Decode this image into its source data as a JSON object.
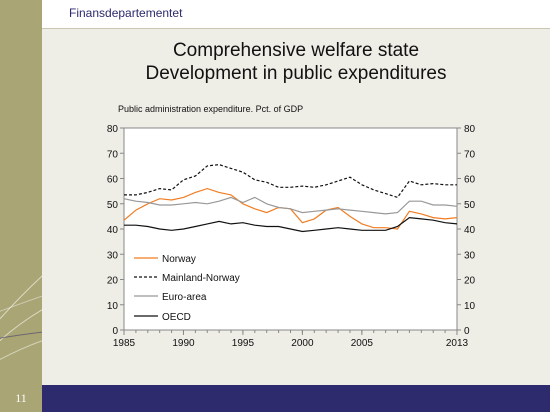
{
  "header": {
    "department": "Finansdepartementet"
  },
  "slide": {
    "title_line1": "Comprehensive welfare state",
    "title_line2": "Development in public expenditures",
    "page_number": "11"
  },
  "colors": {
    "olive": "#a9a574",
    "navy": "#2d2a6e"
  },
  "chart_data": {
    "type": "line",
    "subtitle": "Public administration expenditure. Pct. of GDP",
    "ylim": [
      0,
      80
    ],
    "yticks": [
      0,
      10,
      20,
      30,
      40,
      50,
      60,
      70,
      80
    ],
    "xlim": [
      1985,
      2013
    ],
    "xticks": [
      1985,
      1990,
      1995,
      2000,
      2005,
      2013
    ],
    "legend": "bottom-left",
    "x": [
      1985,
      1986,
      1987,
      1988,
      1989,
      1990,
      1991,
      1992,
      1993,
      1994,
      1995,
      1996,
      1997,
      1998,
      1999,
      2000,
      2001,
      2002,
      2003,
      2004,
      2005,
      2006,
      2007,
      2008,
      2009,
      2010,
      2011,
      2012,
      2013
    ],
    "series": [
      {
        "name": "Norway",
        "color": "#f07d23",
        "dash": "",
        "values": [
          43.5,
          47.5,
          50,
          52,
          51.5,
          52.5,
          54.5,
          56,
          54.5,
          53.5,
          50,
          48,
          46.5,
          48.5,
          48,
          42.5,
          44,
          47.5,
          48.5,
          45,
          42,
          40.5,
          40.5,
          40,
          47,
          46,
          44.5,
          44,
          44.5
        ]
      },
      {
        "name": "Mainland-Norway",
        "color": "#111111",
        "dash": "3,2",
        "values": [
          53.5,
          53.5,
          54.5,
          56,
          55.5,
          59.5,
          61,
          65,
          65.5,
          64,
          62.5,
          59.5,
          58.5,
          56.5,
          56.5,
          57,
          56.5,
          57.5,
          59,
          60.5,
          57.5,
          55.5,
          54,
          52.5,
          59,
          57.5,
          58,
          57.5,
          57.5
        ]
      },
      {
        "name": "Euro-area",
        "color": "#999999",
        "dash": "",
        "values": [
          52,
          51,
          50.5,
          49.5,
          49.5,
          50,
          50.5,
          50,
          51,
          52.5,
          50.5,
          52.5,
          50,
          48.5,
          48,
          46.5,
          47,
          47.5,
          48,
          47.5,
          47,
          46.5,
          46,
          46.5,
          51,
          51,
          49.5,
          49.5,
          49
        ]
      },
      {
        "name": "OECD",
        "color": "#111111",
        "dash": "",
        "values": [
          41.5,
          41.5,
          41,
          40,
          39.5,
          40,
          41,
          42,
          43,
          42,
          42.5,
          41.5,
          41,
          41,
          40,
          39,
          39.5,
          40,
          40.5,
          40,
          39.5,
          39.5,
          39.5,
          41,
          44.5,
          44,
          43.5,
          42.5,
          42
        ]
      }
    ]
  }
}
